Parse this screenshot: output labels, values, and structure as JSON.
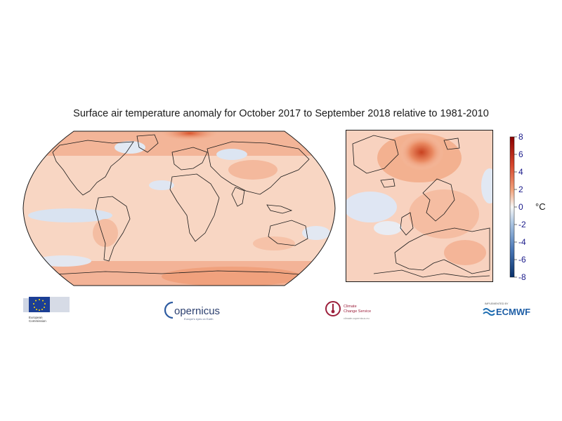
{
  "title": "Surface air temperature anomaly for October 2017 to September 2018 relative to 1981-2010",
  "legend": {
    "unit": "°C",
    "ticks": [
      "8",
      "6",
      "4",
      "2",
      "0",
      "-2",
      "-4",
      "-6",
      "-8"
    ],
    "range": [
      -8,
      8
    ],
    "colors": {
      "cold_extreme": "#08306b",
      "cold": "#6f97cb",
      "neutral": "#f7f7f7",
      "warm": "#f2a47d",
      "warm_extreme": "#8b0000"
    }
  },
  "maps": {
    "global": "world-map-robinson-projection",
    "inset": "europe-north-atlantic-inset"
  },
  "logos": {
    "eu": {
      "name": "eu-flag-icon",
      "text_line1": "European",
      "text_line2": "Commission"
    },
    "copernicus": {
      "name": "copernicus-logo",
      "word": "opernicus",
      "tagline": "Europe's eyes on Earth"
    },
    "c3s": {
      "name": "c3s-logo",
      "line1": "Climate",
      "line2": "Change Service",
      "url": "climate.copernicus.eu"
    },
    "ecmwf": {
      "name": "ecmwf-logo",
      "prefix": "IMPLEMENTED BY",
      "word": "ECMWF"
    }
  }
}
